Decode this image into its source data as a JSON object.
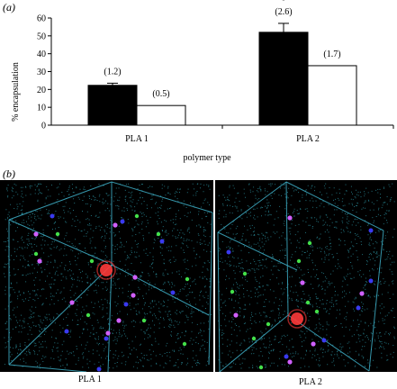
{
  "panel_a": {
    "label": "(a)"
  },
  "panel_b": {
    "label": "(b)",
    "images": [
      {
        "caption": "PLA 1"
      },
      {
        "caption": "PLA 2"
      }
    ]
  },
  "chart_data": {
    "type": "bar",
    "xlabel": "polymer type",
    "ylabel": "% encapsulation",
    "categories": [
      "PLA 1",
      "PLA 2"
    ],
    "ylim": [
      0,
      60
    ],
    "yticks": [
      0,
      10,
      20,
      30,
      40,
      50,
      60
    ],
    "grid": false,
    "series": [
      {
        "color": "#000000",
        "values": [
          22.3,
          52.0
        ],
        "error": [
          1.2,
          5.0
        ],
        "labels": [
          "(1.2)",
          "(2.6)"
        ]
      },
      {
        "color": "#ffffff",
        "values": [
          11.0,
          33.3
        ],
        "error": [
          0,
          0
        ],
        "labels": [
          "(0.5)",
          "(1.7)"
        ]
      }
    ],
    "annotations": [
      {
        "category": "PLA 2",
        "text": "*"
      }
    ]
  },
  "colors": {
    "micrograph_background": "#000000",
    "box_edges": "#3fb0c8",
    "scatter": "#2a8c9a",
    "green_particles": "#44e04a",
    "blue_particles": "#3a3af0",
    "magenta_particles": "#d060ff",
    "red_cluster": "#ff3a3a"
  }
}
